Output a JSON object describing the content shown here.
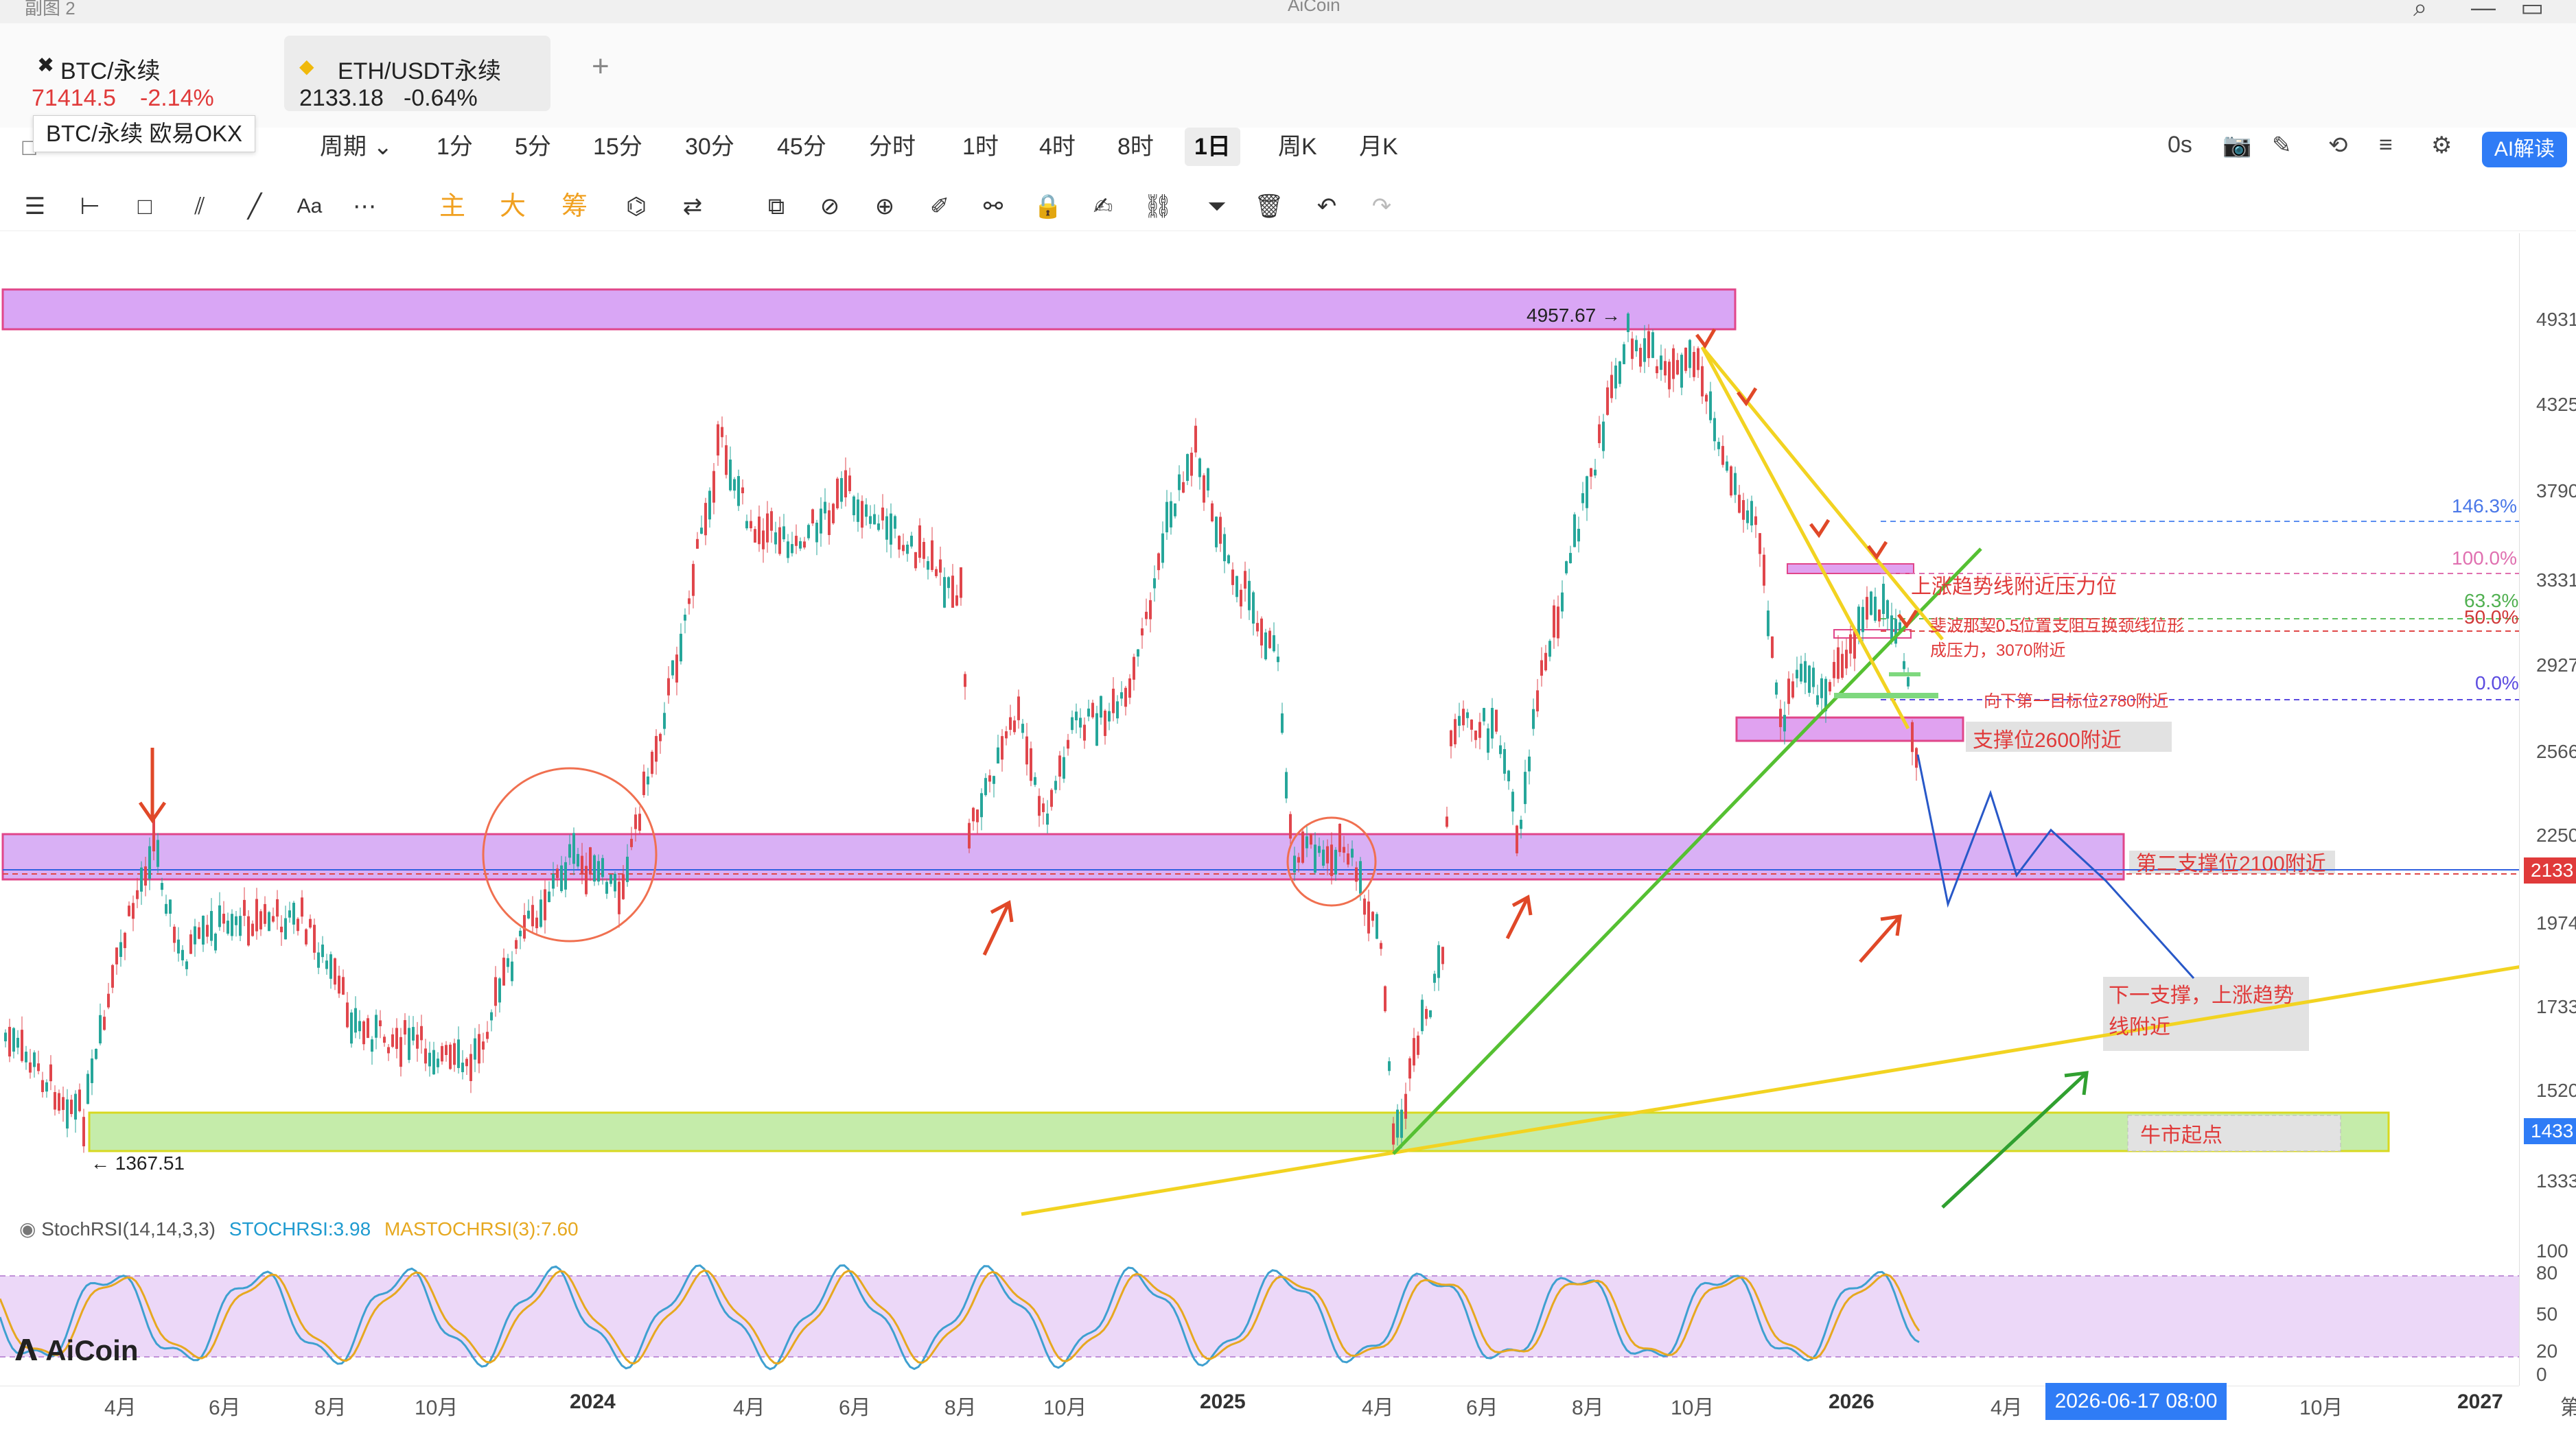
{
  "window": {
    "title": "AiCoin",
    "left_label": "副图 2"
  },
  "tabs": [
    {
      "symbol": "BTC/永续",
      "price": "71414.5",
      "change": "-2.14%"
    },
    {
      "symbol": "ETH/USDT永续",
      "price": "2133.18",
      "change": "-0.64%"
    }
  ],
  "add_tab": "+",
  "tooltip": "BTC/永续 欧易OKX",
  "intervals": {
    "period": "周期",
    "items": [
      "1分",
      "5分",
      "15分",
      "30分",
      "45分",
      "分时",
      "1时",
      "4时",
      "8时",
      "1日",
      "周K",
      "月K"
    ],
    "active": "1日"
  },
  "toolbar_right": {
    "countdown": "0s",
    "ai_label": "AI解读"
  },
  "toolbar": {
    "main": "主",
    "big": "大",
    "chips": "筹",
    "text": "Aa"
  },
  "chart": {
    "high_label": "4957.67",
    "low_label": "1367.51",
    "fib": {
      "l1": "146.3%",
      "l2": "100.0%",
      "l3": "63.3%",
      "l4": "50.0%",
      "l5": "0.0%"
    },
    "annotations": {
      "a1": "上涨趋势线附近压力位",
      "a2": "斐波那契0.5位置支阻互换颈线位形",
      "a3": "成压力，3070附近",
      "a4": "向下第一目标位2780附近",
      "a5": "支撑位2600附近",
      "a6": "第二支撑位2100附近",
      "a7": "下一支撑，上涨趋势",
      "a8": "线附近",
      "a9": "牛市起点"
    }
  },
  "y_axis": {
    "ticks": [
      "4931",
      "4325",
      "3790",
      "3331",
      "2927",
      "2566",
      "2250",
      "1974",
      "1733",
      "1520",
      "1333"
    ],
    "badge_current": "2133",
    "badge_low": "1433",
    "stoch_ticks": [
      "100",
      "80",
      "50",
      "20",
      "0"
    ]
  },
  "x_axis": {
    "ticks": [
      "4月",
      "6月",
      "8月",
      "10月",
      "2024",
      "4月",
      "6月",
      "8月",
      "10月",
      "2025",
      "4月",
      "6月",
      "8月",
      "10月",
      "2026",
      "4月",
      "10月",
      "2027",
      "第"
    ],
    "crosshair_date": "2026-06-17 08:00"
  },
  "stoch": {
    "name": "StochRSI(14,14,3,3)",
    "k": "STOCHRSI:3.98",
    "d": "MASTOCHRSI(3):7.60"
  },
  "logo": "AiCoin",
  "colors": {
    "up": "#26a69a",
    "down": "#e0464c",
    "accent": "#2f7cf6",
    "zone_purple": "#d9a6f5",
    "zone_green": "#c5ecaa"
  }
}
